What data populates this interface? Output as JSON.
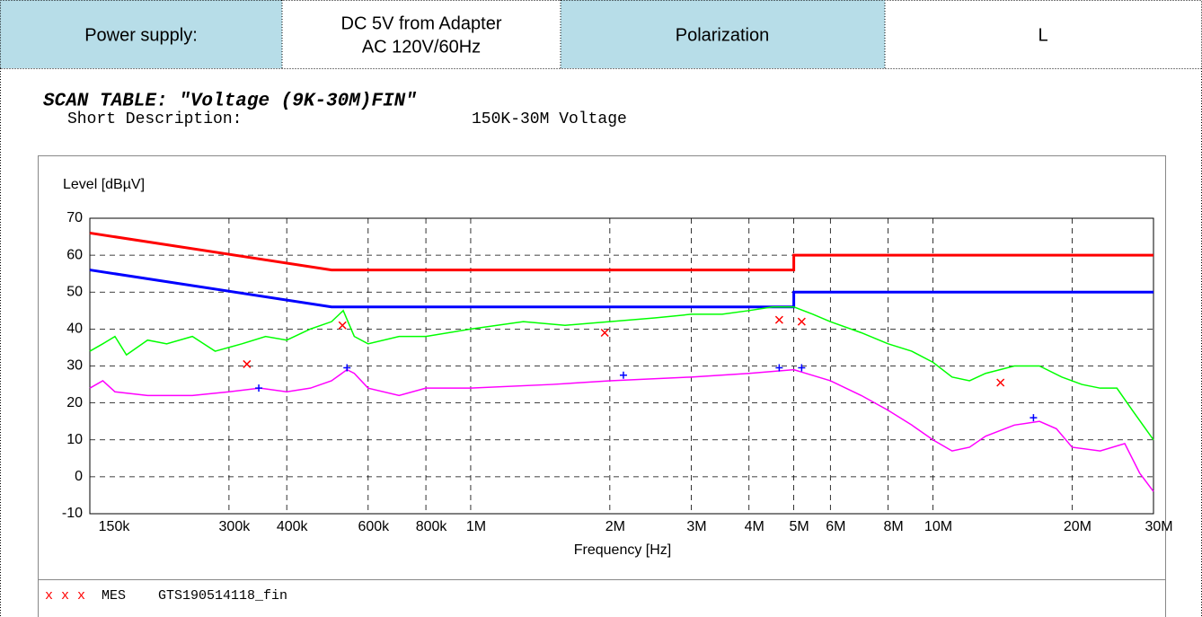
{
  "header": {
    "supply_label": "Power supply:",
    "supply": [
      "DC 5V from Adapter",
      "AC 120V/60Hz"
    ],
    "polarization_label": "Polarization",
    "polarization": "L"
  },
  "scan_table": "SCAN TABLE: \"Voltage (9K-30M)FIN\"",
  "short_description": {
    "label": "Short Description:",
    "value": "150K-30M Voltage"
  },
  "chart_data": {
    "type": "line",
    "log_x": true,
    "grid": true,
    "ylabel": "Level [dBµV]",
    "xlabel": "Frequency [Hz]",
    "xlim": [
      150000,
      30000000
    ],
    "ylim": [
      -10,
      70
    ],
    "yticks": [
      -10,
      0,
      10,
      20,
      30,
      40,
      50,
      60,
      70
    ],
    "xticks": [
      {
        "value": 150000,
        "label": "150k"
      },
      {
        "value": 300000,
        "label": "300k"
      },
      {
        "value": 400000,
        "label": "400k"
      },
      {
        "value": 600000,
        "label": "600k"
      },
      {
        "value": 800000,
        "label": "800k"
      },
      {
        "value": 1000000,
        "label": "1M"
      },
      {
        "value": 2000000,
        "label": "2M"
      },
      {
        "value": 3000000,
        "label": "3M"
      },
      {
        "value": 4000000,
        "label": "4M"
      },
      {
        "value": 5000000,
        "label": "5M"
      },
      {
        "value": 6000000,
        "label": "6M"
      },
      {
        "value": 8000000,
        "label": "8M"
      },
      {
        "value": 10000000,
        "label": "10M"
      },
      {
        "value": 20000000,
        "label": "20M"
      },
      {
        "value": 30000000,
        "label": "30M"
      }
    ],
    "series": [
      {
        "color": "#ff0000",
        "style": "line",
        "x": [
          150000,
          500000,
          5000000,
          5000000,
          30000000
        ],
        "values": [
          66,
          56,
          56,
          60,
          60
        ]
      },
      {
        "color": "#0000ff",
        "style": "line",
        "x": [
          150000,
          500000,
          5000000,
          5000000,
          30000000
        ],
        "values": [
          56,
          46,
          46,
          50,
          50
        ]
      },
      {
        "color": "#00ff00",
        "style": "line",
        "x": [
          150000,
          160000,
          170000,
          180000,
          200000,
          220000,
          250000,
          280000,
          320000,
          360000,
          400000,
          450000,
          500000,
          530000,
          560000,
          600000,
          700000,
          800000,
          1000000,
          1300000,
          1600000,
          2000000,
          2500000,
          3000000,
          3500000,
          4000000,
          4500000,
          5000000,
          5500000,
          6000000,
          7000000,
          8000000,
          9000000,
          10000000,
          11000000,
          12000000,
          13000000,
          15000000,
          17000000,
          19000000,
          21000000,
          23000000,
          25000000,
          27000000,
          30000000
        ],
        "values": [
          34,
          36,
          38,
          33,
          37,
          36,
          38,
          34,
          36,
          38,
          37,
          40,
          42,
          45,
          38,
          36,
          38,
          38,
          40,
          42,
          41,
          42,
          43,
          44,
          44,
          45,
          46,
          46,
          44,
          42,
          39,
          36,
          34,
          31,
          27,
          26,
          28,
          30,
          30,
          27,
          25,
          24,
          24,
          18,
          10
        ]
      },
      {
        "color": "#ff00ff",
        "style": "line",
        "x": [
          150000,
          160000,
          170000,
          200000,
          250000,
          300000,
          350000,
          400000,
          450000,
          500000,
          540000,
          560000,
          600000,
          700000,
          800000,
          1000000,
          1500000,
          2000000,
          3000000,
          4000000,
          5000000,
          6000000,
          7000000,
          8000000,
          9000000,
          10000000,
          11000000,
          12000000,
          13000000,
          15000000,
          17000000,
          18500000,
          20000000,
          23000000,
          26000000,
          28000000,
          30000000
        ],
        "values": [
          24,
          26,
          23,
          22,
          22,
          23,
          24,
          23,
          24,
          26,
          29,
          28,
          24,
          22,
          24,
          24,
          25,
          26,
          27,
          28,
          29,
          26,
          22,
          18,
          14,
          10,
          7,
          8,
          11,
          14,
          15,
          13,
          8,
          7,
          9,
          1,
          -4
        ]
      },
      {
        "color": "#ff0000",
        "style": "x",
        "x": [
          328000,
          528000,
          1950000,
          4650000,
          5200000,
          14000000
        ],
        "values": [
          30.5,
          41,
          39,
          42.5,
          42,
          25.5
        ]
      },
      {
        "color": "#0000ff",
        "style": "+",
        "x": [
          348000,
          540000,
          2140000,
          4650000,
          5200000,
          16500000
        ],
        "values": [
          24,
          29.5,
          27.5,
          29.5,
          29.5,
          16
        ]
      }
    ],
    "legend": {
      "symbol": "x x x",
      "label": "MES",
      "file": "GTS190514118_fin"
    }
  }
}
